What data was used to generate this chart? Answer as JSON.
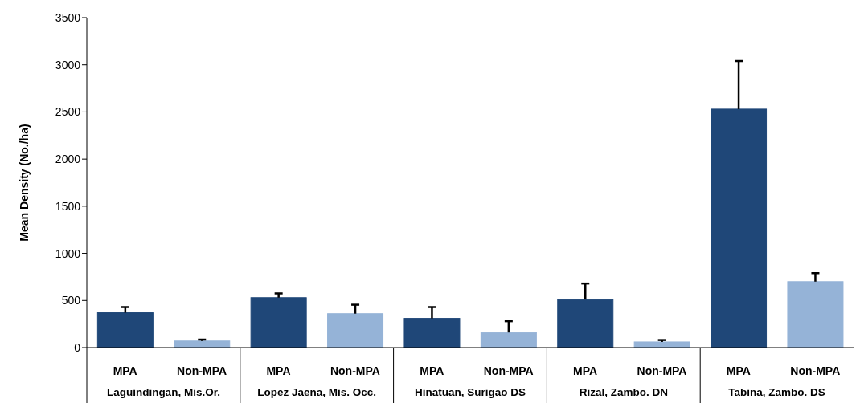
{
  "chart_data": {
    "type": "bar",
    "ylabel": "Mean Density (No./ha)",
    "categories": [
      "MPA",
      "Non-MPA",
      "MPA",
      "Non-MPA",
      "MPA",
      "Non-MPA",
      "MPA",
      "Non-MPA",
      "MPA",
      "Non-MPA"
    ],
    "values": [
      370,
      70,
      530,
      360,
      310,
      160,
      510,
      60,
      2530,
      700
    ],
    "colors": [
      "#1f4778",
      "#95b3d7",
      "#1f4778",
      "#95b3d7",
      "#1f4778",
      "#95b3d7",
      "#1f4778",
      "#95b3d7",
      "#1f4778",
      "#95b3d7"
    ],
    "errors": [
      [
        370,
        430
      ],
      [
        70,
        85
      ],
      [
        530,
        575
      ],
      [
        360,
        455
      ],
      [
        310,
        430
      ],
      [
        160,
        280
      ],
      [
        510,
        680
      ],
      [
        60,
        80
      ],
      [
        2530,
        3040
      ],
      [
        700,
        790
      ]
    ],
    "annotations": [
      "Laguindingan, Mis.Or.",
      "Lopez Jaena, Mis. Occ.",
      "Hinatuan, Surigao DS",
      "Rizal, Zambo. DN",
      "Tabina, Zambo. DS"
    ],
    "ylim": [
      0,
      3500
    ],
    "yticks": [
      0,
      500,
      1000,
      1500,
      2000,
      2500,
      3000,
      3500
    ],
    "grid": false
  }
}
